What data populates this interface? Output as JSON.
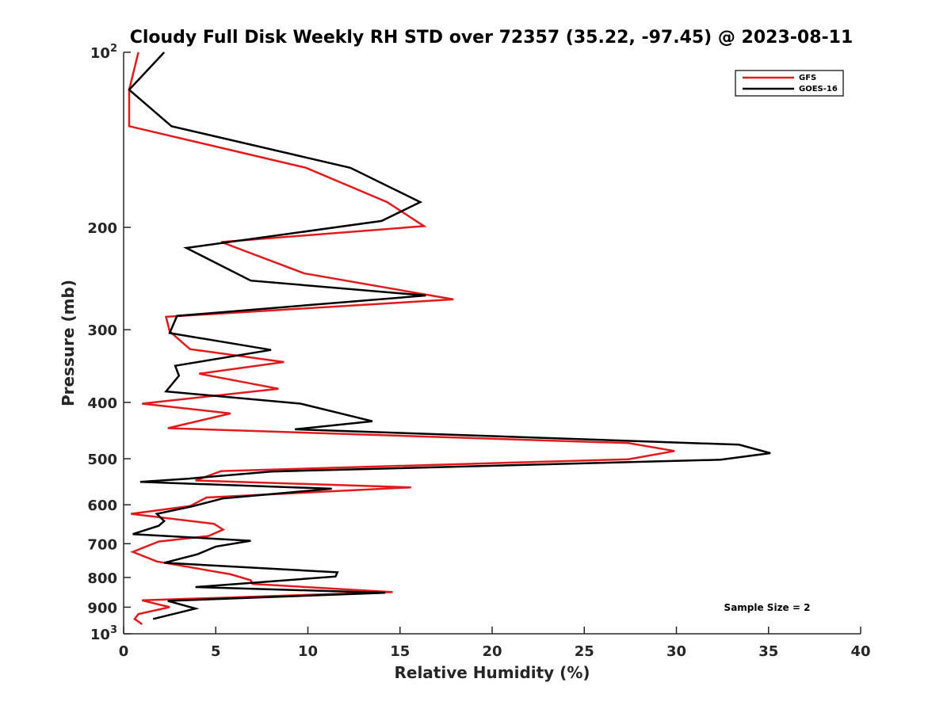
{
  "chart_data": {
    "type": "line",
    "title": "Cloudy Full Disk Weekly RH STD over 72357 (35.22, -97.45) @ 2023-08-11",
    "xlabel": "Relative Humidity (%)",
    "ylabel": "Pressure (mb)",
    "xlim": [
      0,
      40
    ],
    "ylim": [
      100,
      1000
    ],
    "y_scale": "log",
    "y_reversed": true,
    "grid": false,
    "legend_position": "top-right",
    "xticks": [
      0,
      5,
      10,
      15,
      20,
      25,
      30,
      35,
      40
    ],
    "xtick_labels": [
      "0",
      "5",
      "10",
      "15",
      "20",
      "25",
      "30",
      "35",
      "40"
    ],
    "yticks": [
      100,
      200,
      300,
      400,
      500,
      600,
      700,
      800,
      900,
      1000
    ],
    "ytick_labels": [
      {
        "base": "10",
        "exp": "2"
      },
      {
        "base": "200",
        "exp": ""
      },
      {
        "base": "300",
        "exp": ""
      },
      {
        "base": "400",
        "exp": ""
      },
      {
        "base": "500",
        "exp": ""
      },
      {
        "base": "600",
        "exp": ""
      },
      {
        "base": "700",
        "exp": ""
      },
      {
        "base": "800",
        "exp": ""
      },
      {
        "base": "900",
        "exp": ""
      },
      {
        "base": "10",
        "exp": "3"
      }
    ],
    "annotation": "Sample Size = 2",
    "series": [
      {
        "name": "GFS",
        "color": "#e31a1c",
        "points": [
          [
            0.8,
            100
          ],
          [
            0.3,
            116
          ],
          [
            0.3,
            134
          ],
          [
            9.9,
            158
          ],
          [
            14.3,
            181
          ],
          [
            16.3,
            199
          ],
          [
            5.3,
            212
          ],
          [
            9.8,
            240
          ],
          [
            17.9,
            266
          ],
          [
            2.3,
            285
          ],
          [
            2.5,
            302
          ],
          [
            3.6,
            324
          ],
          [
            8.7,
            341
          ],
          [
            4.1,
            357
          ],
          [
            8.4,
            379
          ],
          [
            1.0,
            402
          ],
          [
            5.8,
            418
          ],
          [
            2.4,
            443
          ],
          [
            27.4,
            470
          ],
          [
            29.9,
            485
          ],
          [
            27.4,
            501
          ],
          [
            5.3,
            525
          ],
          [
            3.9,
            545
          ],
          [
            15.6,
            560
          ],
          [
            4.5,
            583
          ],
          [
            3.6,
            603
          ],
          [
            0.4,
            622
          ],
          [
            4.9,
            647
          ],
          [
            5.4,
            662
          ],
          [
            4.6,
            679
          ],
          [
            1.9,
            694
          ],
          [
            0.5,
            723
          ],
          [
            1.8,
            751
          ],
          [
            5.8,
            790
          ],
          [
            6.9,
            809
          ],
          [
            7.0,
            821
          ],
          [
            14.6,
            848
          ],
          [
            1.0,
            876
          ],
          [
            2.5,
            900
          ],
          [
            0.8,
            925
          ],
          [
            0.6,
            943
          ],
          [
            1.0,
            963
          ]
        ]
      },
      {
        "name": "GOES-16",
        "color": "#000000",
        "points": [
          [
            2.2,
            100
          ],
          [
            0.3,
            116
          ],
          [
            2.6,
            134
          ],
          [
            12.3,
            158
          ],
          [
            16.1,
            181
          ],
          [
            14.0,
            195
          ],
          [
            3.4,
            217
          ],
          [
            6.9,
            247
          ],
          [
            16.4,
            262
          ],
          [
            2.9,
            284
          ],
          [
            2.5,
            304
          ],
          [
            8.0,
            325
          ],
          [
            2.8,
            346
          ],
          [
            3.0,
            360
          ],
          [
            2.3,
            383
          ],
          [
            9.6,
            402
          ],
          [
            13.5,
            431
          ],
          [
            9.3,
            445
          ],
          [
            33.4,
            473
          ],
          [
            35.1,
            489
          ],
          [
            32.4,
            502
          ],
          [
            8.0,
            526
          ],
          [
            3.5,
            541
          ],
          [
            0.9,
            548
          ],
          [
            11.3,
            563
          ],
          [
            5.4,
            585
          ],
          [
            3.7,
            604
          ],
          [
            1.8,
            622
          ],
          [
            2.2,
            640
          ],
          [
            1.9,
            652
          ],
          [
            0.5,
            674
          ],
          [
            6.9,
            692
          ],
          [
            5.0,
            708
          ],
          [
            4.0,
            730
          ],
          [
            2.2,
            755
          ],
          [
            11.6,
            784
          ],
          [
            11.5,
            797
          ],
          [
            3.9,
            831
          ],
          [
            14.2,
            850
          ],
          [
            2.4,
            878
          ],
          [
            3.9,
            905
          ],
          [
            1.6,
            943
          ]
        ]
      }
    ]
  }
}
